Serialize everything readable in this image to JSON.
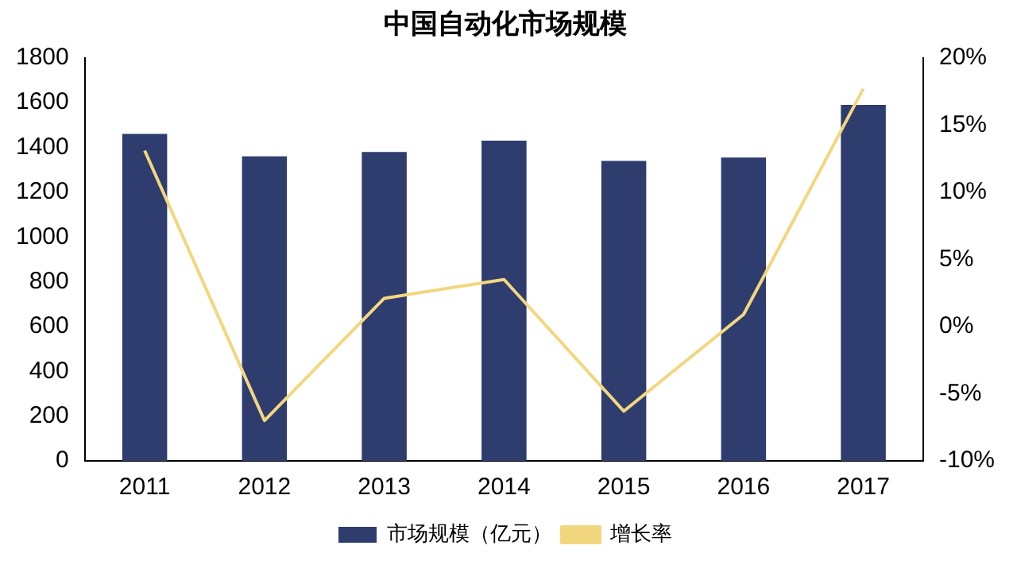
{
  "chart_data": {
    "type": "bar",
    "title": "中国自动化市场规模",
    "categories": [
      "2011",
      "2012",
      "2013",
      "2014",
      "2015",
      "2016",
      "2017"
    ],
    "series": [
      {
        "name": "市场规模（亿元）",
        "color": "#2f3c6e",
        "values": [
          1460,
          1360,
          1380,
          1430,
          1340,
          1355,
          1590
        ]
      },
      {
        "name": "增长率",
        "type": "line",
        "axis": "y2",
        "color": "#f2d77e",
        "values": [
          13.1,
          -7.0,
          2.1,
          3.5,
          -6.3,
          0.9,
          17.7
        ]
      }
    ],
    "ylim": [
      0,
      1800
    ],
    "yticks": [
      0,
      200,
      400,
      600,
      800,
      1000,
      1200,
      1400,
      1600,
      1800
    ],
    "y2lim": [
      -10,
      20
    ],
    "y2ticks": [
      {
        "value": -10,
        "label": "-10%"
      },
      {
        "value": -5,
        "label": "-5%"
      },
      {
        "value": 0,
        "label": "0%"
      },
      {
        "value": 5,
        "label": "5%"
      },
      {
        "value": 10,
        "label": "10%"
      },
      {
        "value": 15,
        "label": "15%"
      },
      {
        "value": 20,
        "label": "20%"
      }
    ],
    "grid": false,
    "legend": "bottom",
    "marker": "none"
  }
}
